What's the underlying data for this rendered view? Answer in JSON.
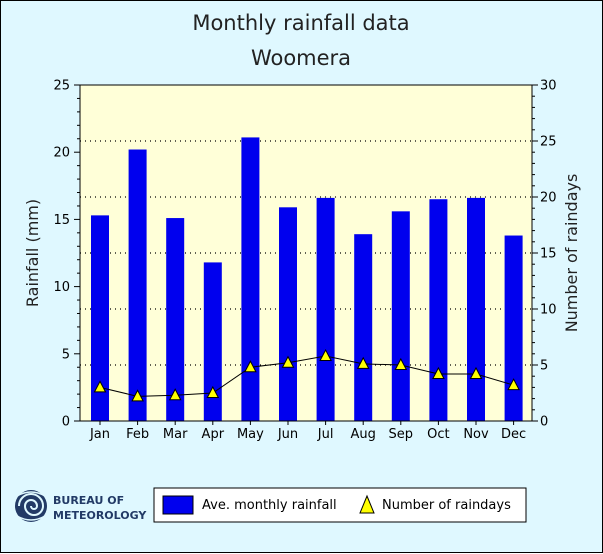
{
  "chart_data": {
    "type": "bar",
    "title": "Monthly rainfall data",
    "subtitle": "Woomera",
    "categories": [
      "Jan",
      "Feb",
      "Mar",
      "Apr",
      "May",
      "Jun",
      "Jul",
      "Aug",
      "Sep",
      "Oct",
      "Nov",
      "Dec"
    ],
    "series": [
      {
        "name": "Ave. monthly rainfall",
        "type": "bar",
        "axis": "left",
        "color": "#0000ee",
        "values": [
          15.3,
          20.2,
          15.1,
          11.8,
          21.1,
          15.9,
          16.6,
          13.9,
          15.6,
          16.5,
          16.6,
          13.8
        ]
      },
      {
        "name": "Number of raindays",
        "type": "line",
        "axis": "right",
        "marker": "triangle",
        "color": "#ffff00",
        "values": [
          3.0,
          2.2,
          2.3,
          2.5,
          4.8,
          5.2,
          5.8,
          5.1,
          5.0,
          4.2,
          4.2,
          3.2
        ]
      }
    ],
    "ylabel": "Rainfall (mm)",
    "y2label": "Number of raindays",
    "ylim": [
      0,
      25
    ],
    "y2lim": [
      0,
      30
    ],
    "yticks": [
      "0",
      "5",
      "10",
      "15",
      "20",
      "25"
    ],
    "y2ticks": [
      "0",
      "5",
      "10",
      "15",
      "20",
      "25",
      "30"
    ],
    "grid": "dotted horizontal",
    "legend_position": "bottom"
  },
  "logo": {
    "line1": "BUREAU OF",
    "line2": "METEOROLOGY"
  },
  "colors": {
    "background": "#dff8ff",
    "plot_area": "#ffffd8",
    "bar": "#0000ee",
    "marker": "#ffff00"
  }
}
